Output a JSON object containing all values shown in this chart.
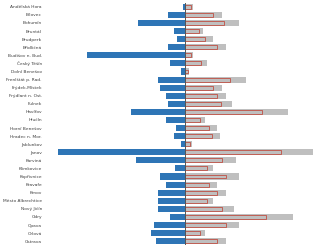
{
  "cities": [
    "Andělská Hora",
    "Bílovec",
    "Bohumín",
    "Bruntál",
    "Brudperk",
    "Břidličná",
    "Budišov n. Bud.",
    "Český Těšín",
    "Dolní Benešov",
    "Frenlštát p. Rad.",
    "Frýdek-Místek",
    "Frýdlant n. Ost.",
    "Fulnek",
    "Havířov",
    "Hlučín",
    "Horní Benešov",
    "Hradec n. Mor.",
    "Jablunkov",
    "Janov",
    "Karviná",
    "Klimkovice",
    "Kopřivnice",
    "Kravafe",
    "Krnov",
    "Město Albrechtice",
    "Nový Jičín",
    "Odry",
    "Opava",
    "Orlová",
    "Ostrava"
  ],
  "blue_values": [
    2,
    18,
    48,
    12,
    8,
    18,
    100,
    16,
    4,
    28,
    26,
    20,
    18,
    55,
    20,
    9,
    11,
    4,
    130,
    50,
    10,
    26,
    20,
    28,
    28,
    28,
    16,
    32,
    35,
    30
  ],
  "gray_values": [
    8,
    38,
    55,
    18,
    28,
    42,
    8,
    22,
    4,
    62,
    38,
    42,
    48,
    105,
    20,
    32,
    35,
    7,
    130,
    52,
    28,
    55,
    32,
    42,
    28,
    50,
    110,
    55,
    20,
    42
  ],
  "red_outline_values": [
    6,
    28,
    40,
    14,
    20,
    32,
    6,
    16,
    3,
    46,
    28,
    32,
    36,
    78,
    15,
    24,
    27,
    5,
    98,
    38,
    22,
    42,
    24,
    32,
    22,
    38,
    82,
    42,
    15,
    32
  ],
  "bar_color_blue": "#2e75b6",
  "bar_color_gray": "#bfbfbf",
  "bar_color_red_outline": "#c0392b",
  "background_color": "#ffffff",
  "center_line_color": "#555555",
  "grid_color": "#d9d9d9",
  "text_color": "#404040",
  "xlim_left": -145,
  "xlim_right": 145,
  "figwidth": 3.3,
  "figheight": 2.48,
  "dpi": 100
}
